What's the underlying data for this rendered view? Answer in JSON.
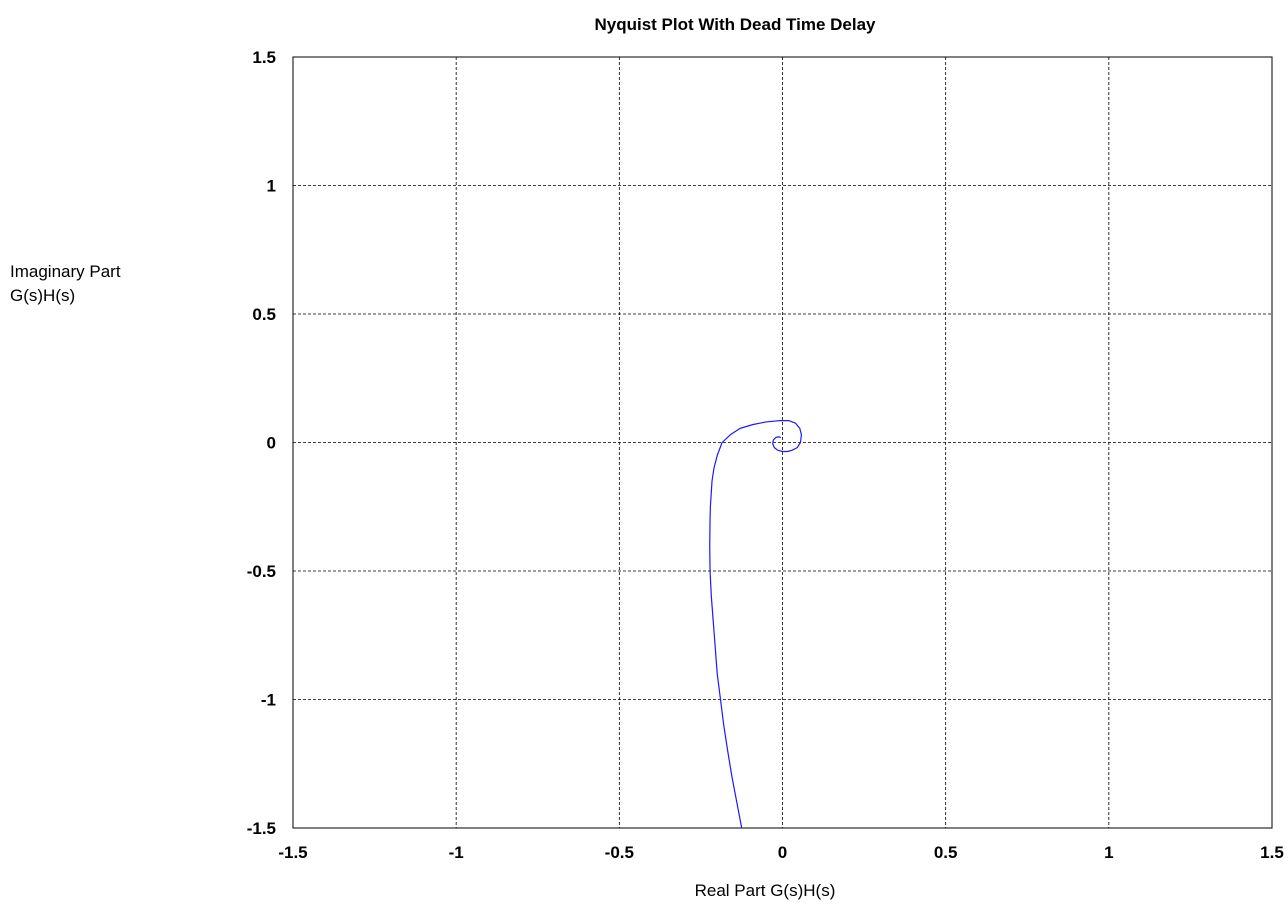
{
  "chart_data": {
    "type": "line",
    "title": "Nyquist Plot With Dead Time Delay",
    "xlabel": "Real Part G(s)H(s)",
    "ylabel_lines": [
      "Imaginary Part",
      "G(s)H(s)"
    ],
    "xlim": [
      -1.5,
      1.5
    ],
    "ylim": [
      -1.5,
      1.5
    ],
    "xticks": [
      -1.5,
      -1,
      -0.5,
      0,
      0.5,
      1,
      1.5
    ],
    "yticks": [
      -1.5,
      -1,
      -0.5,
      0,
      0.5,
      1,
      1.5
    ],
    "xtick_labels": [
      "-1.5",
      "-1",
      "-0.5",
      "0",
      "0.5",
      "1",
      "1.5"
    ],
    "ytick_labels": [
      "-1.5",
      "-1",
      "-0.5",
      "0",
      "0.5",
      "1",
      "1.5"
    ],
    "grid": true,
    "line_color": "#1a1aff",
    "series": [
      {
        "x": [
          -0.125,
          -0.14,
          -0.155,
          -0.168,
          -0.18,
          -0.19,
          -0.2,
          -0.206,
          -0.212,
          -0.218,
          -0.222,
          -0.223,
          -0.222,
          -0.221,
          -0.216,
          -0.21,
          -0.2,
          -0.185,
          -0.16,
          -0.13,
          -0.09,
          -0.05,
          -0.01,
          0.02,
          0.04,
          0.053,
          0.058,
          0.055,
          0.045,
          0.03,
          0.015,
          0.0,
          -0.015,
          -0.025,
          -0.03,
          -0.028,
          -0.02,
          -0.012,
          -0.005
        ],
        "y": [
          -1.5,
          -1.4,
          -1.3,
          -1.2,
          -1.1,
          -1.0,
          -0.9,
          -0.8,
          -0.7,
          -0.6,
          -0.5,
          -0.4,
          -0.3,
          -0.25,
          -0.15,
          -0.1,
          -0.05,
          0.0,
          0.03,
          0.055,
          0.07,
          0.08,
          0.085,
          0.085,
          0.075,
          0.055,
          0.03,
          0.0,
          -0.02,
          -0.03,
          -0.035,
          -0.035,
          -0.03,
          -0.02,
          -0.005,
          0.01,
          0.02,
          0.022,
          0.02
        ]
      }
    ]
  }
}
